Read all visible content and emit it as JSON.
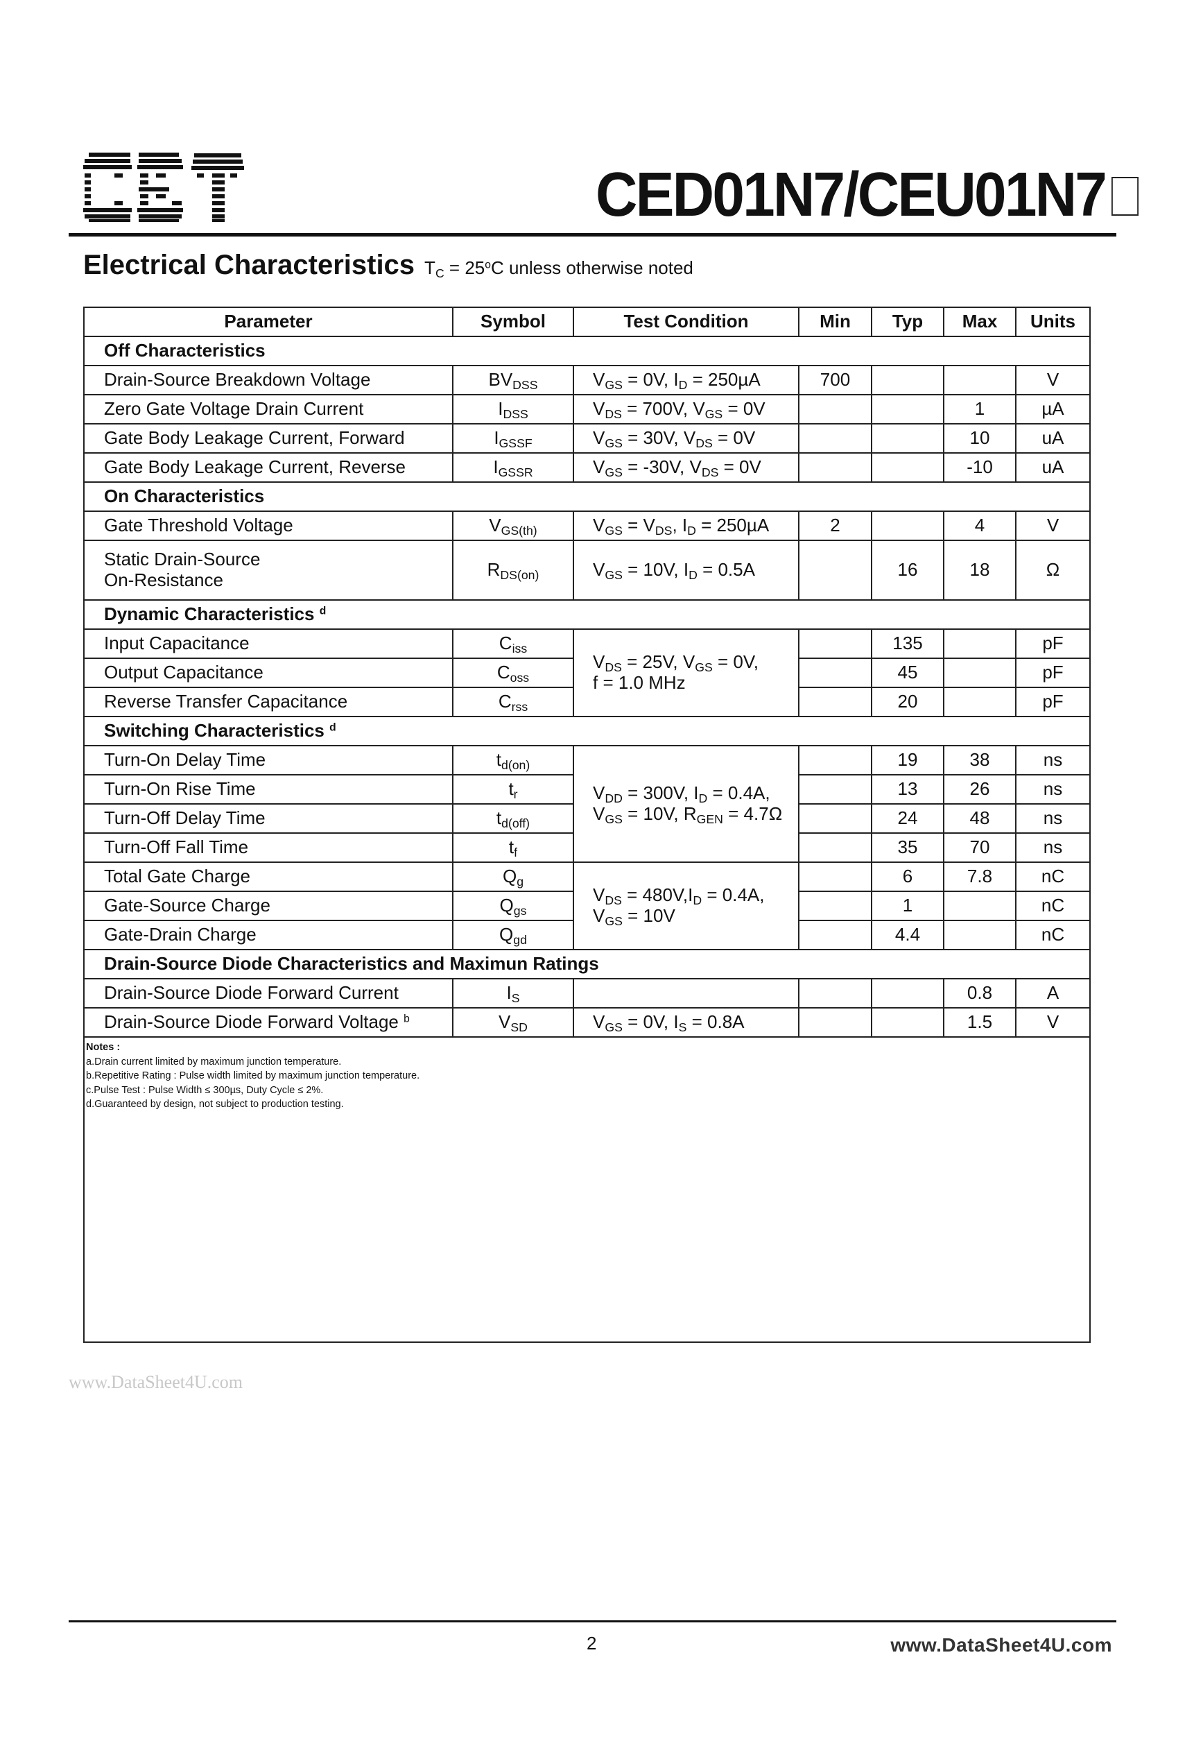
{
  "header": {
    "logo_text": "CET",
    "title": "CED01N7/CEU01N7"
  },
  "heading": {
    "title": "Electrical Characteristics",
    "condition": [
      "T",
      "_C",
      " = 25",
      "^o",
      "C unless otherwise noted"
    ]
  },
  "table": {
    "columns": [
      "Parameter",
      "Symbol",
      "Test Condition",
      "Min",
      "Typ",
      "Max",
      "Units"
    ],
    "rows": [
      {
        "section": [
          "Off Characteristics"
        ]
      },
      {
        "param": [
          "Drain-Source Breakdown Voltage"
        ],
        "sym": [
          "BV",
          "_DSS"
        ],
        "cond": [
          "V",
          "_GS",
          " = 0V, I",
          "_D",
          " = 250µA"
        ],
        "cond_rows": 1,
        "min": "700",
        "typ": "",
        "max": "",
        "units": "V"
      },
      {
        "param": [
          "Zero Gate Voltage Drain Current"
        ],
        "sym": [
          "I",
          "_DSS"
        ],
        "cond": [
          "V",
          "_DS",
          " = 700V, V",
          "_GS",
          " = 0V"
        ],
        "cond_rows": 1,
        "min": "",
        "typ": "",
        "max": "1",
        "units": "µA"
      },
      {
        "param": [
          "Gate Body Leakage Current, Forward"
        ],
        "sym": [
          "I",
          "_GSSF"
        ],
        "cond": [
          "V",
          "_GS",
          " =  30V, V",
          "_DS",
          " = 0V"
        ],
        "cond_rows": 1,
        "min": "",
        "typ": "",
        "max": "10",
        "units": "uA"
      },
      {
        "param": [
          "Gate Body Leakage Current, Reverse"
        ],
        "sym": [
          "I",
          "_GSSR"
        ],
        "cond": [
          "V",
          "_GS",
          " = -30V, V",
          "_DS",
          " = 0V"
        ],
        "cond_rows": 1,
        "min": "",
        "typ": "",
        "max": "-10",
        "units": "uA"
      },
      {
        "section": [
          "On Characteristics"
        ]
      },
      {
        "param": [
          "Gate Threshold Voltage"
        ],
        "sym": [
          "V",
          "_GS(th)"
        ],
        "cond": [
          "V",
          "_GS",
          " = V",
          "_DS",
          ", I",
          "_D",
          " = 250µA"
        ],
        "cond_rows": 1,
        "min": "2",
        "typ": "",
        "max": "4",
        "units": "V"
      },
      {
        "param": [
          "Static Drain-Source",
          "On-Resistance"
        ],
        "sym": [
          "R",
          "_DS(on)"
        ],
        "cond": [
          "V",
          "_GS",
          " = 10V, I",
          "_D",
          " = 0.5A"
        ],
        "cond_rows": 1,
        "min": "",
        "typ": "16",
        "max": "18",
        "units": "Ω"
      },
      {
        "section": [
          "Dynamic Characteristics ",
          "^d"
        ]
      },
      {
        "param": [
          "Input Capacitance"
        ],
        "sym": [
          "C",
          "_iss"
        ],
        "cond": [
          "V",
          "_DS",
          " = 25V, V",
          "_GS",
          " = 0V,",
          "|",
          "f = 1.0 MHz"
        ],
        "cond_rows": 3,
        "min": "",
        "typ": "135",
        "max": "",
        "units": "pF"
      },
      {
        "param": [
          "Output Capacitance"
        ],
        "sym": [
          "C",
          "_oss"
        ],
        "min": "",
        "typ": "45",
        "max": "",
        "units": "pF"
      },
      {
        "param": [
          "Reverse Transfer Capacitance"
        ],
        "sym": [
          "C",
          "_rss"
        ],
        "min": "",
        "typ": "20",
        "max": "",
        "units": "pF"
      },
      {
        "section": [
          "Switching Characteristics ",
          "^d"
        ]
      },
      {
        "param": [
          "Turn-On Delay Time"
        ],
        "sym": [
          "t",
          "_d(on)"
        ],
        "cond": [
          "V",
          "_DD",
          " = 300V, I",
          "_D",
          " = 0.4A,",
          "|",
          "V",
          "_GS",
          " = 10V, R",
          "_GEN",
          " = 4.7Ω"
        ],
        "cond_rows": 4,
        "min": "",
        "typ": "19",
        "max": "38",
        "units": "ns"
      },
      {
        "param": [
          "Turn-On Rise Time"
        ],
        "sym": [
          "t",
          "_r"
        ],
        "min": "",
        "typ": "13",
        "max": "26",
        "units": "ns"
      },
      {
        "param": [
          "Turn-Off Delay Time"
        ],
        "sym": [
          "t",
          "_d(off)"
        ],
        "min": "",
        "typ": "24",
        "max": "48",
        "units": "ns"
      },
      {
        "param": [
          "Turn-Off Fall Time"
        ],
        "sym": [
          "t",
          "_f"
        ],
        "min": "",
        "typ": "35",
        "max": "70",
        "units": "ns"
      },
      {
        "param": [
          "Total Gate Charge"
        ],
        "sym": [
          "Q",
          "_g"
        ],
        "cond": [
          "V",
          "_DS",
          " = 480V,I",
          "_D",
          " = 0.4A,",
          "|",
          "V",
          "_GS",
          " = 10V"
        ],
        "cond_rows": 3,
        "min": "",
        "typ": "6",
        "max": "7.8",
        "units": "nC"
      },
      {
        "param": [
          "Gate-Source Charge"
        ],
        "sym": [
          "Q",
          "_gs"
        ],
        "min": "",
        "typ": "1",
        "max": "",
        "units": "nC"
      },
      {
        "param": [
          "Gate-Drain Charge"
        ],
        "sym": [
          "Q",
          "_gd"
        ],
        "min": "",
        "typ": "4.4",
        "max": "",
        "units": "nC"
      },
      {
        "section": [
          "Drain-Source Diode Characteristics and Maximun Ratings"
        ]
      },
      {
        "param": [
          "Drain-Source Diode Forward Current"
        ],
        "sym": [
          "I",
          "_S"
        ],
        "cond": [
          ""
        ],
        "cond_rows": 1,
        "min": "",
        "typ": "",
        "max": "0.8",
        "units": "A"
      },
      {
        "param": [
          "Drain-Source Diode Forward Voltage ",
          "^b"
        ],
        "sym": [
          "V",
          "_SD"
        ],
        "cond": [
          "V",
          "_GS",
          " = 0V, I",
          "_S",
          " = 0.8A"
        ],
        "cond_rows": 1,
        "min": "",
        "typ": "",
        "max": "1.5",
        "units": "V"
      }
    ],
    "notes": {
      "heading": "Notes :",
      "items": [
        "a.Drain current limited by maximum junction temperature.",
        "b.Repetitive Rating : Pulse width limited by maximum junction temperature.",
        "c.Pulse Test : Pulse Width ≤ 300µs, Duty Cycle ≤ 2%.",
        "d.Guaranteed by design, not subject to production testing."
      ]
    }
  },
  "watermark": "www.DataSheet4U.com",
  "footer": {
    "page_number": "2",
    "site": "www.DataSheet4U.com"
  }
}
